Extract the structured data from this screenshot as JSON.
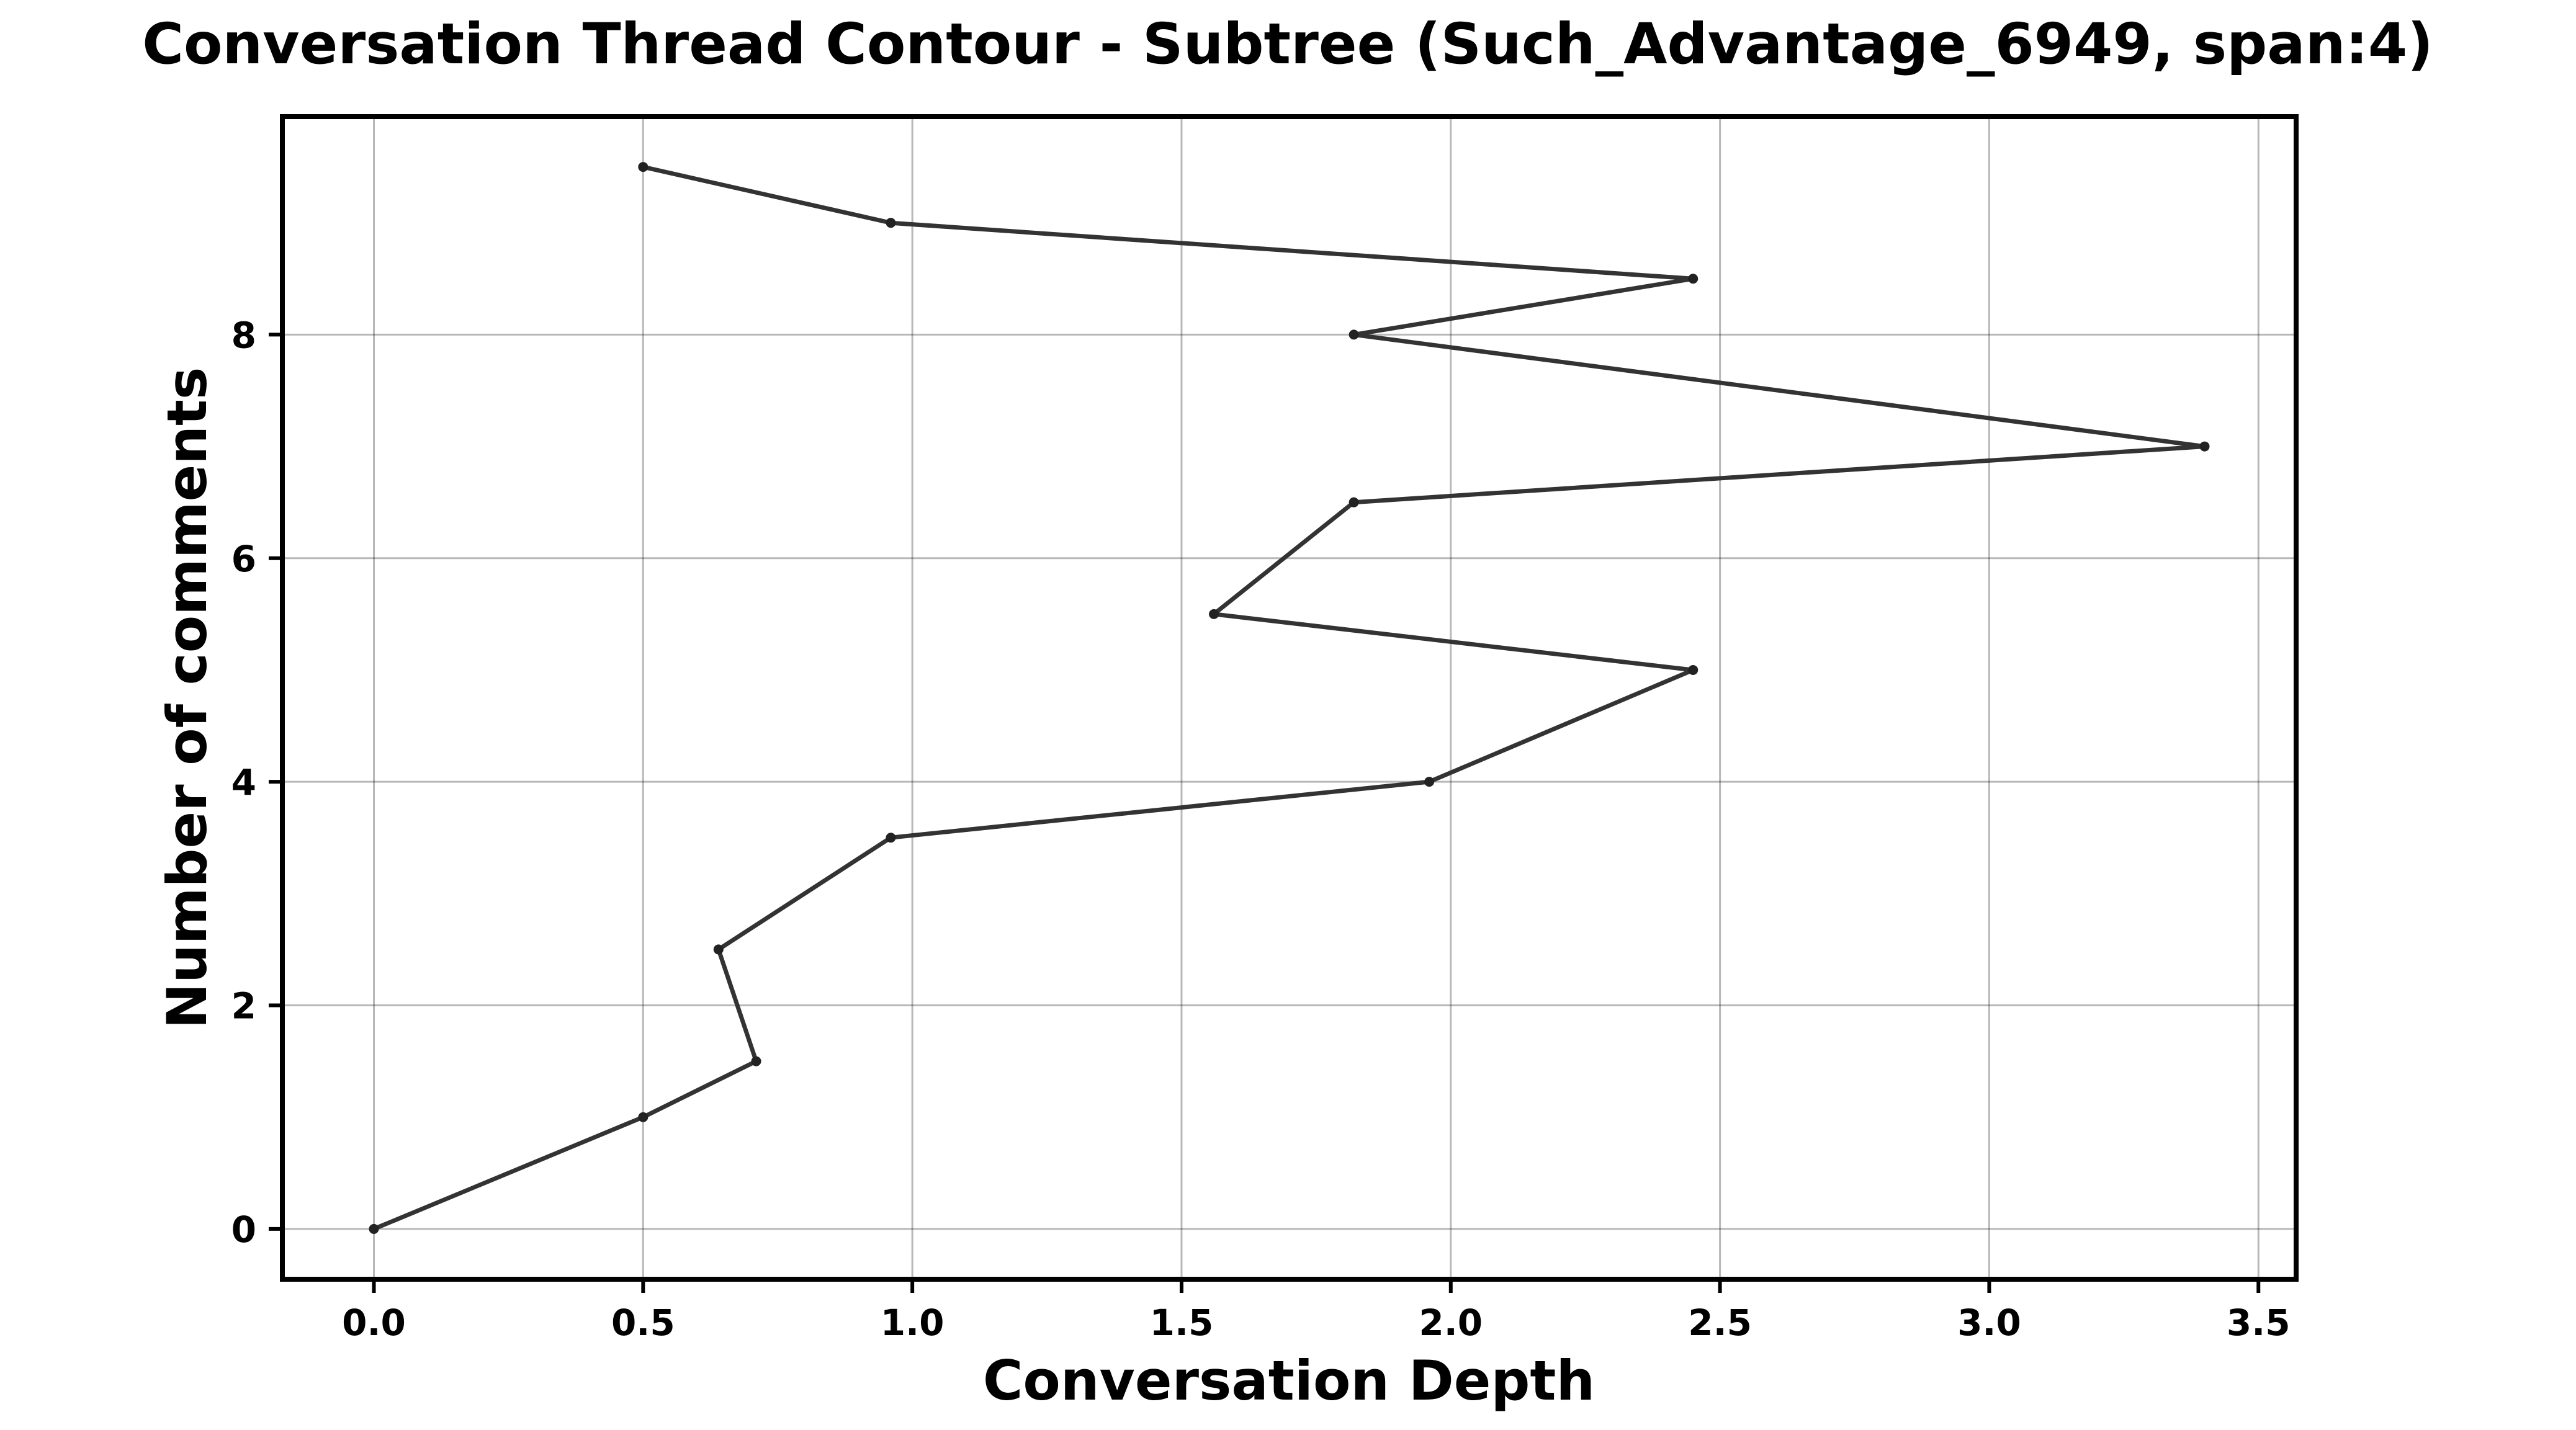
{
  "chart_data": {
    "type": "line",
    "title": "Conversation Thread Contour  - Subtree (Such_Advantage_6949, span:4)",
    "xlabel": "Conversation Depth",
    "ylabel": "Number of comments",
    "xlim": [
      -0.17,
      3.57
    ],
    "ylim": [
      -0.45,
      9.95
    ],
    "xticks": [
      0.0,
      0.5,
      1.0,
      1.5,
      2.0,
      2.5,
      3.0,
      3.5
    ],
    "xtick_labels": [
      "0.0",
      "0.5",
      "1.0",
      "1.5",
      "2.0",
      "2.5",
      "3.0",
      "3.5"
    ],
    "yticks": [
      0,
      2,
      4,
      6,
      8
    ],
    "ytick_labels": [
      "0",
      "2",
      "4",
      "6",
      "8"
    ],
    "grid": true,
    "legend": "none",
    "line_color": "#333333",
    "marker_color": "#222222",
    "series": [
      {
        "points": [
          {
            "x": 0.0,
            "y": 0.0
          },
          {
            "x": 0.5,
            "y": 1.0
          },
          {
            "x": 0.71,
            "y": 1.5
          },
          {
            "x": 0.64,
            "y": 2.5
          },
          {
            "x": 0.96,
            "y": 3.5
          },
          {
            "x": 1.96,
            "y": 4.0
          },
          {
            "x": 2.45,
            "y": 5.0
          },
          {
            "x": 1.56,
            "y": 5.5
          },
          {
            "x": 1.82,
            "y": 6.5
          },
          {
            "x": 3.4,
            "y": 7.0
          },
          {
            "x": 1.82,
            "y": 8.0
          },
          {
            "x": 2.45,
            "y": 8.5
          },
          {
            "x": 0.96,
            "y": 9.0
          },
          {
            "x": 0.5,
            "y": 9.5
          }
        ]
      }
    ]
  }
}
